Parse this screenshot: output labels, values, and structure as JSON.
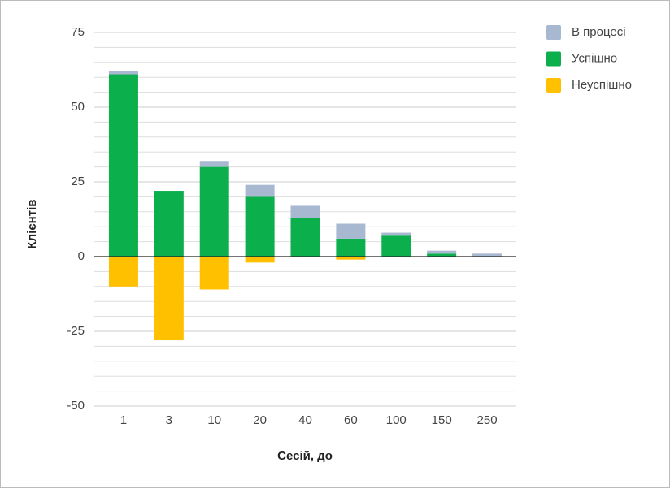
{
  "chart_data": {
    "type": "bar",
    "stacked": true,
    "x_label": "Сесій, до",
    "y_label": "Клієнтів",
    "categories": [
      "1",
      "3",
      "10",
      "20",
      "40",
      "60",
      "100",
      "150",
      "250"
    ],
    "series": [
      {
        "name": "В процесі",
        "color": "#a9b8d1",
        "values": [
          1,
          0,
          2,
          4,
          4,
          5,
          1,
          1,
          1
        ]
      },
      {
        "name": "Успішно",
        "color": "#0bb04c",
        "values": [
          61,
          22,
          30,
          20,
          13,
          6,
          7,
          1,
          0
        ]
      },
      {
        "name": "Неуспішно",
        "color": "#ffc000",
        "values": [
          -10,
          -28,
          -11,
          -2,
          0,
          -1,
          0,
          0,
          0
        ]
      }
    ],
    "ylim": [
      -50,
      75
    ],
    "yticks": [
      -50,
      -25,
      0,
      25,
      50,
      75
    ],
    "minor_yticks": [
      -45,
      -40,
      -35,
      -30,
      -20,
      -15,
      -10,
      -5,
      5,
      10,
      15,
      20,
      30,
      35,
      40,
      45,
      55,
      60,
      65,
      70
    ],
    "grid": true,
    "legend": "right"
  }
}
